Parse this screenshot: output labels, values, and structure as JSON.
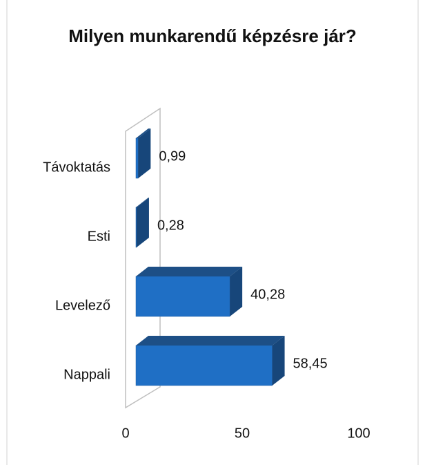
{
  "chart_data": {
    "type": "bar",
    "orientation": "horizontal",
    "title": "Milyen munkarendű képzésre jár?",
    "categories": [
      "Távoktatás",
      "Esti",
      "Levelező",
      "Nappali"
    ],
    "values": [
      0.99,
      0.28,
      40.28,
      58.45
    ],
    "value_labels": [
      "0,99",
      "0,28",
      "40,28",
      "58,45"
    ],
    "color": "#1f6fc5",
    "xlim": [
      0,
      100
    ],
    "xticks": [
      0,
      50,
      100
    ]
  }
}
